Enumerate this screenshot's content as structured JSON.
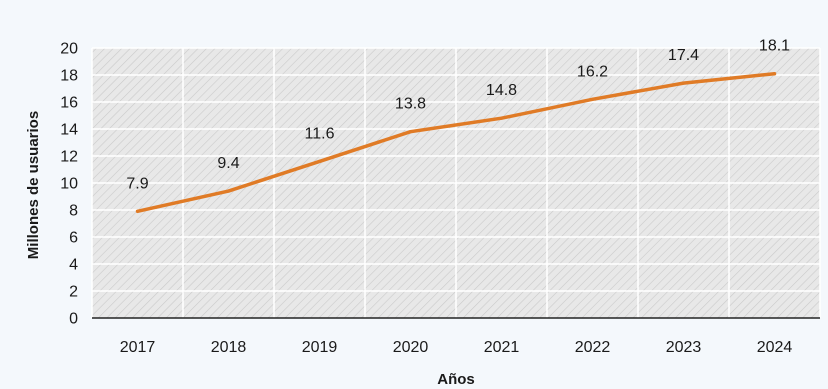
{
  "chart_data": {
    "type": "line",
    "title": "",
    "xlabel": "Años",
    "ylabel": "Millones de usuarios",
    "categories": [
      "2017",
      "2018",
      "2019",
      "2020",
      "2021",
      "2022",
      "2023",
      "2024"
    ],
    "series": [
      {
        "values": [
          7.9,
          9.4,
          11.6,
          13.8,
          14.8,
          16.2,
          17.4,
          18.1
        ],
        "labels": [
          "7.9",
          "9.4",
          "11.6",
          "13.8",
          "14.8",
          "16.2",
          "17.4",
          "18.1"
        ]
      }
    ],
    "ylim": [
      0,
      20
    ],
    "yticks": [
      0,
      2,
      4,
      6,
      8,
      10,
      12,
      14,
      16,
      18,
      20
    ],
    "ytick_labels": [
      "0",
      "2",
      "4",
      "6",
      "8",
      "10",
      "12",
      "14",
      "16",
      "18",
      "20"
    ],
    "grid": true,
    "legend": "none",
    "colors": {
      "line": "#e07b26",
      "plot_background": "#e8e8e8",
      "hatch": "#c9c9c9",
      "grid": "#ffffff",
      "page_background": "#f4f8fc"
    }
  }
}
